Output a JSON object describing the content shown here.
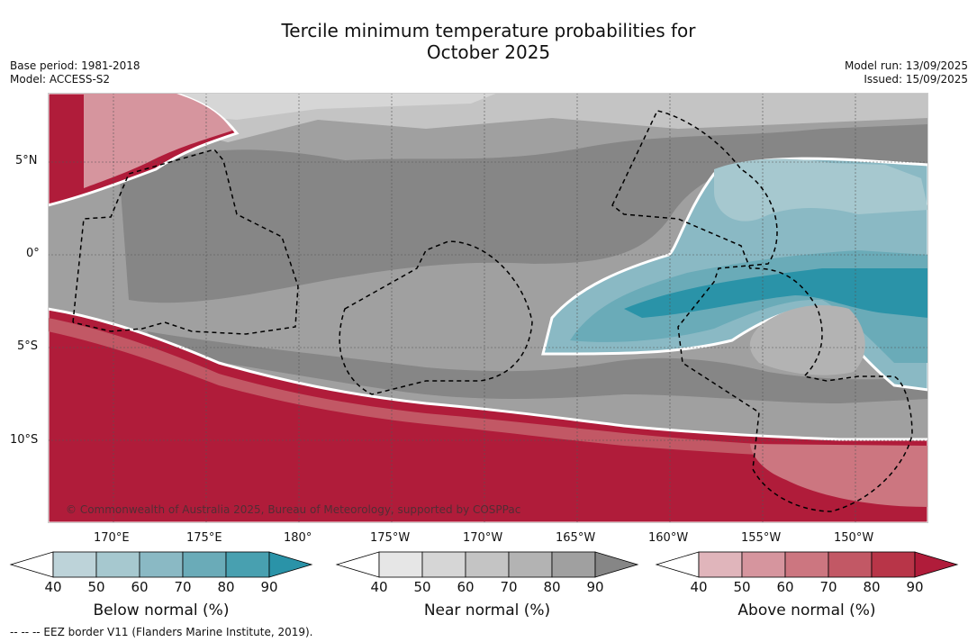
{
  "title_line1": "Tercile minimum temperature probabilities for",
  "title_line2": "October 2025",
  "base_period": "Base period: 1981-2018",
  "model": "Model: ACCESS-S2",
  "model_run": "Model run: 13/09/2025",
  "issued": "Issued: 15/09/2025",
  "copyright": "© Commonwealth of Australia 2025, Bureau of Meteorology, supported by COSPPac",
  "footnote": "--  --  -- EEZ border V11 (Flanders Marine Institute, 2019).",
  "lat_labels": [
    "5°N",
    "0°",
    "5°S",
    "10°S"
  ],
  "lon_labels": [
    "170°E",
    "175°E",
    "180°",
    "175°W",
    "170°W",
    "165°W",
    "160°W",
    "155°W",
    "150°W"
  ],
  "colorbars": [
    {
      "label": "Below normal (%)",
      "ticks": [
        "40",
        "50",
        "60",
        "70",
        "80",
        "90"
      ],
      "colors": [
        "#ffffff",
        "#bdd3d9",
        "#a6c8cf",
        "#8ab9c4",
        "#6aabb8",
        "#48a0b0",
        "#2a93a8"
      ]
    },
    {
      "label": "Near normal (%)",
      "ticks": [
        "40",
        "50",
        "60",
        "70",
        "80",
        "90"
      ],
      "colors": [
        "#ffffff",
        "#e6e6e6",
        "#d6d6d6",
        "#c4c4c4",
        "#b3b3b3",
        "#a0a0a0",
        "#868686"
      ]
    },
    {
      "label": "Above normal (%)",
      "ticks": [
        "40",
        "50",
        "60",
        "70",
        "80",
        "90"
      ],
      "colors": [
        "#ffffff",
        "#e0b5bb",
        "#d6959e",
        "#cc7680",
        "#c25865",
        "#b83548",
        "#b01c3a"
      ]
    }
  ]
}
